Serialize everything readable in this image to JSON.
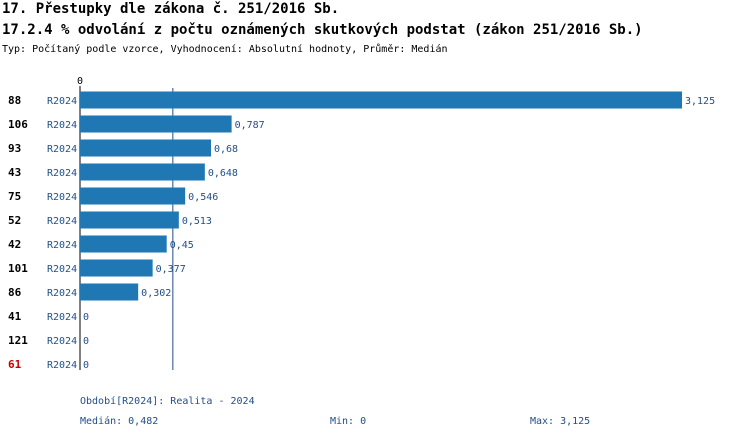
{
  "header": {
    "title": "17. Přestupky dle zákona č. 251/2016 Sb.",
    "subtitle": "17.2.4 % odvolání z počtu oznámených skutkových podstat (zákon 251/2016 Sb.)",
    "type_line": "Typ: Počítaný podle vzorce, Vyhodnocení: Absolutní hodnoty, Průměr: Medián"
  },
  "chart_data": {
    "type": "bar",
    "orientation": "horizontal",
    "axis_zero_label": "0",
    "xlim": [
      0,
      3.125
    ],
    "series_label": "R2024",
    "categories": [
      "88",
      "106",
      "93",
      "43",
      "75",
      "52",
      "42",
      "101",
      "86",
      "41",
      "121",
      "61"
    ],
    "values": [
      3.125,
      0.787,
      0.68,
      0.648,
      0.546,
      0.513,
      0.45,
      0.377,
      0.302,
      0,
      0,
      0
    ],
    "value_labels": [
      "3,125",
      "0,787",
      "0,68",
      "0,648",
      "0,546",
      "0,513",
      "0,45",
      "0,377",
      "0,302",
      "0",
      "0",
      "0"
    ],
    "highlighted_category": "61",
    "median": 0.482,
    "bar_color": "#1f77b4",
    "label_color": "#1f4e8c",
    "highlight_color": "#cc0000"
  },
  "footer": {
    "period": "Období[R2024]: Realita - 2024",
    "median": "Medián: 0,482",
    "min": "Min: 0",
    "max": "Max: 3,125"
  }
}
